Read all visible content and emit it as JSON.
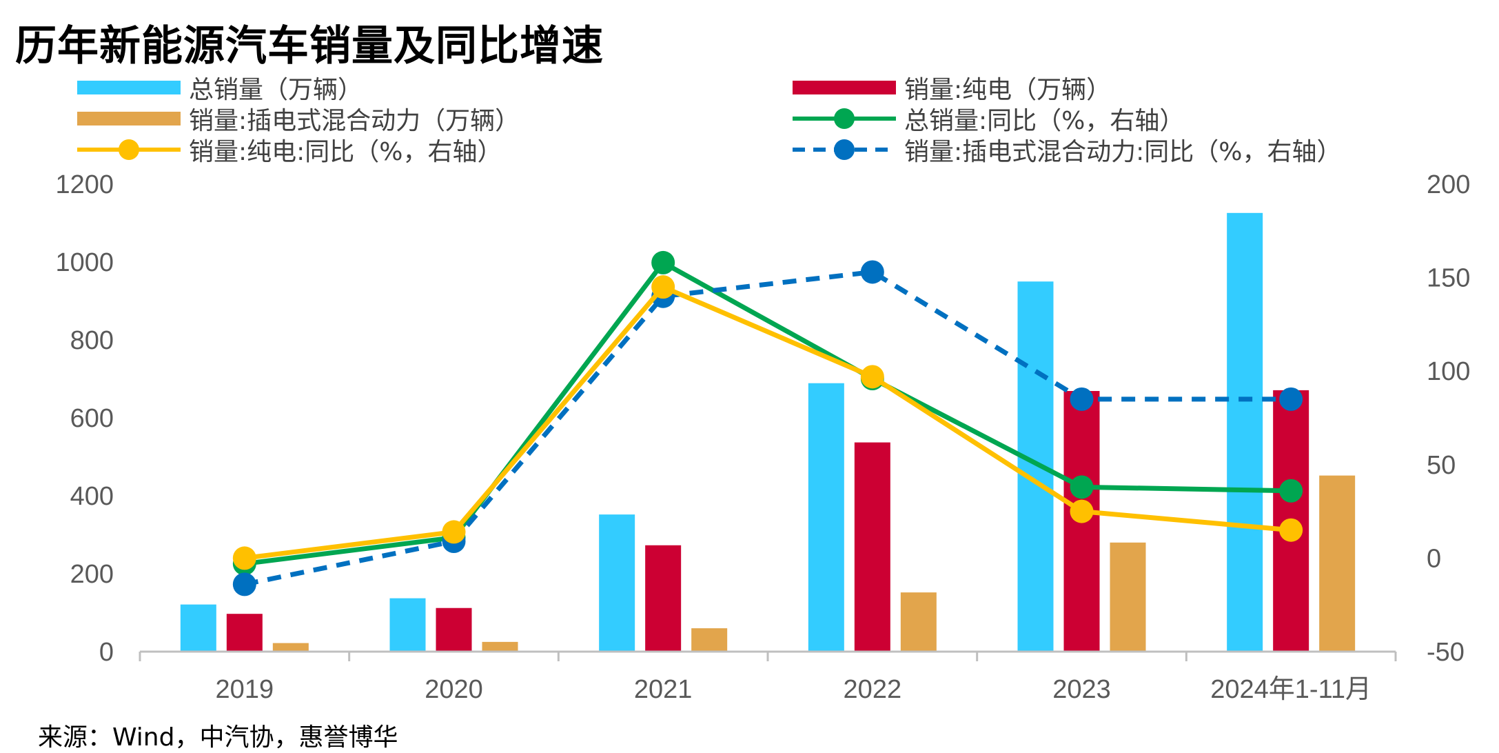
{
  "title": "历年新能源汽车销量及同比增速",
  "source": "来源：Wind，中汽协，惠誉博华",
  "colors": {
    "total": "#33CCFF",
    "bev": "#CC0033",
    "phev": "#E2A54C",
    "total_yoy": "#00A651",
    "bev_yoy": "#FFC000",
    "phev_yoy": "#0070C0"
  },
  "legend": [
    {
      "label": "总销量（万辆）",
      "kind": "bar",
      "color_key": "total"
    },
    {
      "label": "销量:纯电（万辆）",
      "kind": "bar",
      "color_key": "bev"
    },
    {
      "label": "销量:插电式混合动力（万辆）",
      "kind": "bar",
      "color_key": "phev"
    },
    {
      "label": "总销量:同比（%，右轴）",
      "kind": "line",
      "color_key": "total_yoy"
    },
    {
      "label": "销量:纯电:同比（%，右轴）",
      "kind": "line",
      "color_key": "bev_yoy"
    },
    {
      "label": "销量:插电式混合动力:同比（%，右轴）",
      "kind": "dash",
      "color_key": "phev_yoy"
    }
  ],
  "chart_data": {
    "type": "bar",
    "categories": [
      "2019",
      "2020",
      "2021",
      "2022",
      "2023",
      "2024年1-11月"
    ],
    "left_axis": {
      "min": 0,
      "max": 1200,
      "ticks": [
        0,
        200,
        400,
        600,
        800,
        1000,
        1200
      ]
    },
    "right_axis": {
      "min": -50,
      "max": 200,
      "ticks": [
        -50,
        0,
        50,
        100,
        150,
        200
      ]
    },
    "bar_series": [
      {
        "name": "总销量（万辆）",
        "values": [
          121,
          137,
          352,
          689,
          950,
          1126
        ]
      },
      {
        "name": "销量:纯电（万辆）",
        "values": [
          97,
          112,
          273,
          537,
          669,
          671
        ]
      },
      {
        "name": "销量:插电式混合动力（万辆）",
        "values": [
          22,
          25,
          60,
          152,
          280,
          452
        ]
      }
    ],
    "line_series": [
      {
        "name": "总销量:同比（%，右轴）",
        "axis": "right",
        "values": [
          -3,
          11,
          158,
          96,
          38,
          36
        ]
      },
      {
        "name": "销量:纯电:同比（%，右轴）",
        "axis": "right",
        "values": [
          0,
          14,
          145,
          97,
          25,
          15
        ]
      },
      {
        "name": "销量:插电式混合动力:同比（%，右轴）",
        "axis": "right",
        "dashed": true,
        "values": [
          -14,
          9,
          140,
          153,
          85,
          85
        ]
      }
    ],
    "legend_position": "top",
    "grid": false
  }
}
